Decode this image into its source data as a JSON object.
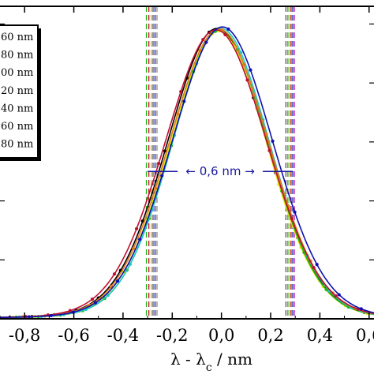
{
  "chart_data": {
    "type": "line",
    "title": "",
    "xlabel": "λ - λc / nm",
    "ylabel": "",
    "xlim": [
      -0.9,
      0.62
    ],
    "ylim": [
      0,
      1.06
    ],
    "grid": false,
    "legend_position": "top-left",
    "x_ticks": [
      {
        "value": -0.8,
        "label": "-0,8"
      },
      {
        "value": -0.6,
        "label": "-0,6"
      },
      {
        "value": -0.4,
        "label": "-0,4"
      },
      {
        "value": -0.2,
        "label": "-0,2"
      },
      {
        "value": 0.0,
        "label": "0,0"
      },
      {
        "value": 0.2,
        "label": "0,2"
      },
      {
        "value": 0.4,
        "label": "0,4"
      },
      {
        "value": 0.6,
        "label": "0,6"
      }
    ],
    "legend_entries": [
      "60 nm",
      "80 nm",
      "00 nm",
      "20 nm",
      "40 nm",
      "60 nm",
      "80 nm"
    ],
    "annotation": {
      "text": "← 0,6 nm →",
      "x_left": -0.3,
      "x_right": 0.29,
      "y": 0.5
    },
    "series": [
      {
        "color": "#000000",
        "center": -0.018,
        "width": 0.205,
        "amplitude": 0.995
      },
      {
        "color": "#e8e800",
        "center": -0.012,
        "width": 0.2,
        "amplitude": 0.985
      },
      {
        "color": "#19b419",
        "center": -0.006,
        "width": 0.198,
        "amplitude": 0.99
      },
      {
        "color": "#20c8c8",
        "center": -0.002,
        "width": 0.2,
        "amplitude": 0.995
      },
      {
        "color": "#e07a1a",
        "center": -0.01,
        "width": 0.206,
        "amplitude": 0.992
      },
      {
        "color": "#c01030",
        "center": -0.022,
        "width": 0.212,
        "amplitude": 0.99
      },
      {
        "color": "#1010b0",
        "center": 0.004,
        "width": 0.208,
        "amplitude": 1.0
      }
    ],
    "vertical_lines": [
      {
        "x": -0.305,
        "color": "#19b419"
      },
      {
        "x": -0.295,
        "color": "#c01030"
      },
      {
        "x": -0.285,
        "color": "#e8b000"
      },
      {
        "x": -0.278,
        "color": "#555555"
      },
      {
        "x": -0.27,
        "color": "#1010b0"
      },
      {
        "x": -0.262,
        "color": "#888888"
      },
      {
        "x": 0.262,
        "color": "#555555"
      },
      {
        "x": 0.27,
        "color": "#19b419"
      },
      {
        "x": 0.277,
        "color": "#e8b000"
      },
      {
        "x": 0.283,
        "color": "#c01030"
      },
      {
        "x": 0.29,
        "color": "#1010b0"
      },
      {
        "x": 0.297,
        "color": "#c040c0"
      }
    ]
  }
}
